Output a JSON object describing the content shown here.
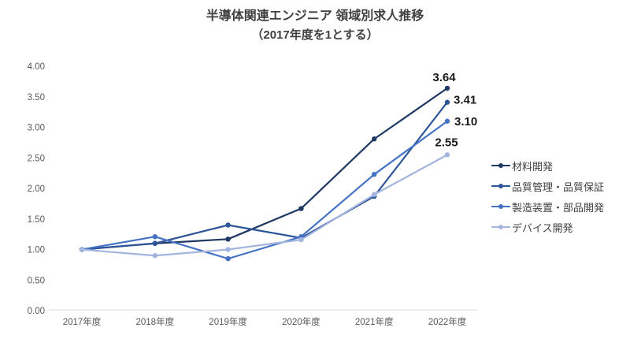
{
  "title": "半導体関連エンジニア 領域別求人推移",
  "subtitle": "（2017年度を1とする）",
  "chart_data": {
    "type": "line",
    "categories": [
      "2017年度",
      "2018年度",
      "2019年度",
      "2020年度",
      "2021年度",
      "2022年度"
    ],
    "series": [
      {
        "name": "材料開発",
        "color": "#1f3864",
        "values": [
          1.0,
          1.1,
          1.17,
          1.67,
          2.81,
          3.64
        ],
        "end_label": "3.64"
      },
      {
        "name": "品質管理・品質保証",
        "color": "#2e5597",
        "values": [
          1.0,
          1.1,
          1.4,
          1.19,
          1.87,
          3.41
        ],
        "end_label": "3.41"
      },
      {
        "name": "製造装置・部品開発",
        "color": "#4472c4",
        "values": [
          1.0,
          1.21,
          0.85,
          1.21,
          2.23,
          3.1
        ],
        "end_label": "3.10"
      },
      {
        "name": "デバイス開発",
        "color": "#a3b5de",
        "values": [
          1.0,
          0.9,
          1.0,
          1.16,
          1.9,
          2.55
        ],
        "end_label": "2.55"
      }
    ],
    "y_ticks": [
      "0.00",
      "0.50",
      "1.00",
      "1.50",
      "2.00",
      "2.50",
      "3.00",
      "3.50",
      "4.00"
    ],
    "ylim": [
      0,
      4
    ],
    "grid": false,
    "legend_position": "right",
    "axis_color": "#d9d9d9",
    "tick_label_color": "#595959",
    "data_label_color": "#1a1a1a"
  }
}
